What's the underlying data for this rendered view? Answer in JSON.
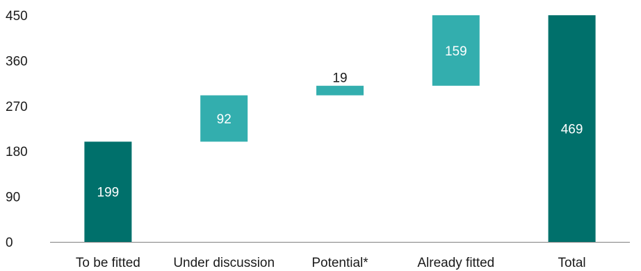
{
  "chart_data": {
    "type": "bar",
    "subtype": "waterfall",
    "categories": [
      "To be fitted",
      "Under discussion",
      "Potential*",
      "Already fitted",
      "Total"
    ],
    "values": [
      199,
      92,
      19,
      159,
      469
    ],
    "bar_kinds": [
      "total",
      "increment",
      "increment",
      "increment",
      "total"
    ],
    "ylim": [
      0,
      450
    ],
    "yticks": [
      0,
      90,
      180,
      270,
      360,
      450
    ],
    "title": "",
    "xlabel": "",
    "ylabel": "",
    "grid": false,
    "legend": "none",
    "colors": {
      "total": "#00706b",
      "increment": "#33aeae",
      "axis": "#7f7f7f",
      "label_inside": "#ffffff",
      "label_outside": "#1a1a1a"
    }
  }
}
